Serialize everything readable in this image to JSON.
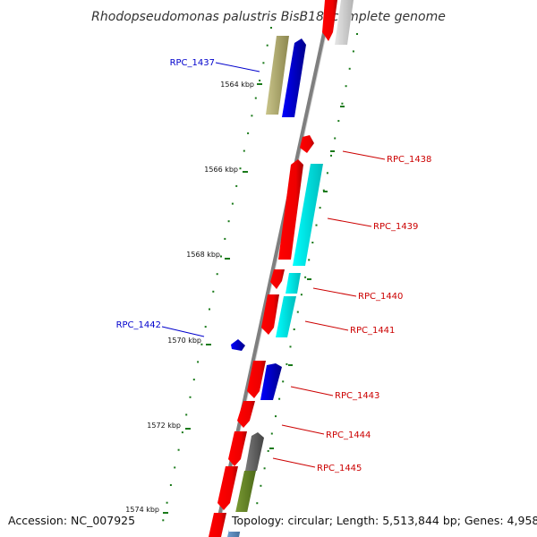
{
  "title": "Rhodopseudomonas palustris BisB18, complete genome",
  "footer": {
    "accession": "Accession: NC_007925",
    "topology": "Topology: circular; Length: 5,513,844 bp; Genes: 4,958"
  },
  "scale_labels": [
    "1564 kbp",
    "1566 kbp",
    "1568 kbp",
    "1570 kbp",
    "1572 kbp",
    "1574 kbp"
  ],
  "gene_labels": {
    "RPC_1437": "RPC_1437",
    "RPC_1438": "RPC_1438",
    "RPC_1439": "RPC_1439",
    "RPC_1440": "RPC_1440",
    "RPC_1441": "RPC_1441",
    "RPC_1442": "RPC_1442",
    "RPC_1443": "RPC_1443",
    "RPC_1444": "RPC_1444",
    "RPC_1445": "RPC_1445"
  },
  "colors": {
    "forward_label": "#0000cc",
    "reverse_label": "#cc0000",
    "red_gene": "#ff0000",
    "blue_gene": "#0000ee",
    "cyan_cog": "#00ffff",
    "olive_cog": "#b5b06a",
    "gray_cog": "#666666",
    "green_cog": "#6a8a2a",
    "tick": "#1a7a1a",
    "backbone": "#888888"
  }
}
